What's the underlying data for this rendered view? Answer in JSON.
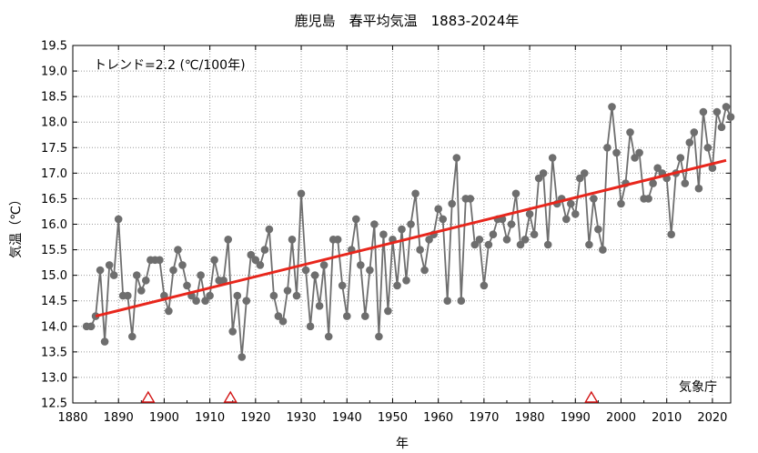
{
  "chart_data": {
    "type": "line",
    "title": "鹿児島　春平均気温　1883-2024年",
    "xlabel": "年",
    "ylabel": "気温（℃）",
    "xlim": [
      1880,
      2024
    ],
    "ylim": [
      12.5,
      19.5
    ],
    "x_ticks": [
      1880,
      1890,
      1900,
      1910,
      1920,
      1930,
      1940,
      1950,
      1960,
      1970,
      1980,
      1990,
      2000,
      2010,
      2020
    ],
    "y_ticks": [
      12.5,
      13.0,
      13.5,
      14.0,
      14.5,
      15.0,
      15.5,
      16.0,
      16.5,
      17.0,
      17.5,
      18.0,
      18.5,
      19.0,
      19.5
    ],
    "grid": true,
    "trend_text": "トレンド=2.2 (℃/100年)",
    "source_text": "気象庁",
    "colors": {
      "series": "#6e6e6e",
      "trend": "#e8261c",
      "marker": "#d21414"
    },
    "series": [
      {
        "x": [
          1883,
          1884,
          1885,
          1886,
          1887,
          1888,
          1889,
          1890,
          1891,
          1892,
          1893,
          1894,
          1895,
          1896,
          1897,
          1898,
          1899,
          1900,
          1901,
          1902,
          1903,
          1904,
          1905,
          1906,
          1907,
          1908,
          1909,
          1910,
          1911,
          1912,
          1913,
          1914,
          1915,
          1916,
          1917,
          1918,
          1919,
          1920,
          1921,
          1922,
          1923,
          1924,
          1925,
          1926,
          1927,
          1928,
          1929,
          1930,
          1931,
          1932,
          1933,
          1934,
          1935,
          1936,
          1937,
          1938,
          1939,
          1940,
          1941,
          1942,
          1943,
          1944,
          1945,
          1946,
          1947,
          1948,
          1949,
          1950,
          1951,
          1952,
          1953,
          1954,
          1955,
          1956,
          1957,
          1958,
          1959,
          1960,
          1961,
          1962,
          1963,
          1964,
          1965,
          1966,
          1967,
          1968,
          1969,
          1970,
          1971,
          1972,
          1973,
          1974,
          1975,
          1976,
          1977,
          1978,
          1979,
          1980,
          1981,
          1982,
          1983,
          1984,
          1985,
          1986,
          1987,
          1988,
          1989,
          1990,
          1991,
          1992,
          1993,
          1994,
          1995,
          1996,
          1997,
          1998,
          1999,
          2000,
          2001,
          2002,
          2003,
          2004,
          2005,
          2006,
          2007,
          2008,
          2009,
          2010,
          2011,
          2012,
          2013,
          2014,
          2015,
          2016,
          2017,
          2018,
          2019,
          2020,
          2021,
          2022,
          2023,
          2024
        ],
        "values": [
          14.0,
          14.0,
          14.2,
          15.1,
          13.7,
          15.2,
          15.0,
          16.1,
          14.6,
          14.6,
          13.8,
          15.0,
          14.7,
          14.9,
          15.3,
          15.3,
          15.3,
          14.6,
          14.3,
          15.1,
          15.5,
          15.2,
          14.8,
          14.6,
          14.5,
          15.0,
          14.5,
          14.6,
          15.3,
          14.9,
          14.9,
          15.7,
          13.9,
          14.6,
          13.4,
          14.5,
          15.4,
          15.3,
          15.2,
          15.5,
          15.9,
          14.6,
          14.2,
          14.1,
          14.7,
          15.7,
          14.6,
          16.6,
          15.1,
          14.0,
          15.0,
          14.4,
          15.2,
          13.8,
          15.7,
          15.7,
          14.8,
          14.2,
          15.5,
          16.1,
          15.2,
          14.2,
          15.1,
          16.0,
          13.8,
          15.8,
          14.3,
          15.7,
          14.8,
          15.9,
          14.9,
          16.0,
          16.6,
          15.5,
          15.1,
          15.7,
          15.8,
          16.3,
          16.1,
          14.5,
          16.4,
          17.3,
          14.5,
          16.5,
          16.5,
          15.6,
          15.7,
          14.8,
          15.6,
          15.8,
          16.1,
          16.1,
          15.7,
          16.0,
          16.6,
          15.6,
          15.7,
          16.2,
          15.8,
          16.9,
          17.0,
          15.6,
          17.3,
          16.4,
          16.5,
          16.1,
          16.4,
          16.2,
          16.9,
          17.0,
          15.6,
          16.5,
          15.9,
          15.5,
          17.5,
          18.3,
          17.4,
          16.4,
          16.8,
          17.8,
          17.3,
          17.4,
          16.5,
          16.5,
          16.8,
          17.1,
          17.0,
          16.9,
          15.8,
          17.0,
          17.3,
          16.8,
          17.6,
          17.8,
          16.7,
          18.2,
          17.5,
          17.1,
          18.2,
          17.9,
          18.3,
          18.1
        ]
      }
    ],
    "trend": {
      "x": [
        1885,
        2023
      ],
      "y": [
        14.2,
        17.25
      ]
    },
    "station_changes": [
      1896.5,
      1914.5,
      1993.5
    ]
  }
}
